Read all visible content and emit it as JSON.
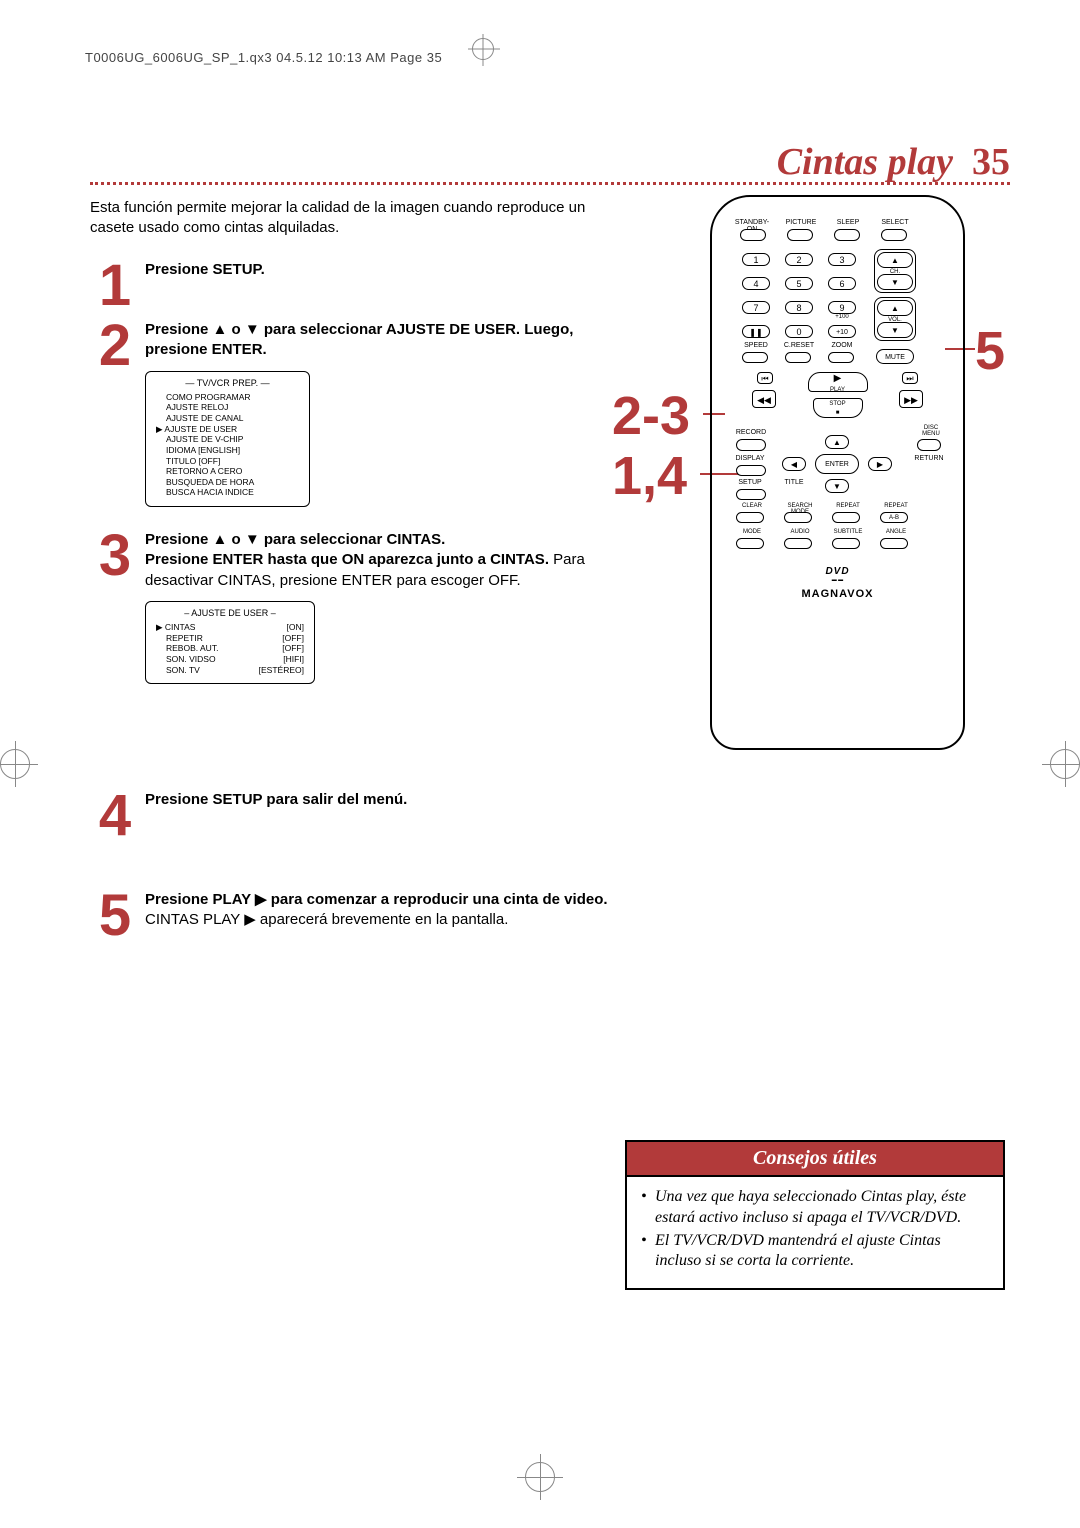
{
  "header_line": "T0006UG_6006UG_SP_1.qx3  04.5.12  10:13 AM  Page 35",
  "page_title_text": "Cintas play",
  "page_title_num": "35",
  "intro": "Esta función permite mejorar la calidad de la imagen cuando reproduce un casete usado como cintas alquiladas.",
  "steps": {
    "s1": {
      "num": "1",
      "text_bold": "Presione SETUP."
    },
    "s2": {
      "num": "2",
      "text_bold": "Presione ▲ o ▼ para seleccionar AJUSTE DE USER.  Luego, presione ENTER.",
      "menu": {
        "title": "— TV/VCR PREP. —",
        "lines": [
          "COMO PROGRAMAR",
          "AJUSTE RELOJ",
          "AJUSTE DE CANAL",
          "AJUSTE DE USER",
          "AJUSTE DE V-CHIP",
          "IDIOMA  [ENGLISH]",
          "TITULO  [OFF]",
          "RETORNO A CERO",
          "BUSQUEDA DE HORA",
          "BUSCA HACIA INDICE"
        ],
        "arrow_index": 3
      }
    },
    "s3": {
      "num": "3",
      "bold_a": "Presione ▲ o ▼ para seleccionar CINTAS.",
      "bold_b": "Presione ENTER hasta que ON aparezca junto a CINTAS.",
      "tail": "  Para desactivar CINTAS, presione ENTER para escoger OFF.",
      "menu": {
        "title": "– AJUSTE DE USER –",
        "rows": [
          {
            "l": "CINTAS",
            "r": "[ON]",
            "sel": true
          },
          {
            "l": "REPETIR",
            "r": "[OFF]"
          },
          {
            "l": "REBOB. AUT.",
            "r": "[OFF]"
          },
          {
            "l": "SON. VIDSO",
            "r": "[HIFI]"
          },
          {
            "l": "SON. TV",
            "r": "[ESTÉREO]"
          }
        ]
      }
    },
    "s4": {
      "num": "4",
      "text_bold": "Presione SETUP para salir del menú."
    },
    "s5": {
      "num": "5",
      "bold_a": "Presione PLAY ▶ para comenzar a reproducir una cinta de video.",
      "tail": " CINTAS PLAY ▶ aparecerá brevemente en la pantalla."
    }
  },
  "callouts": {
    "a": "2-3",
    "b": "1,4",
    "c": "5"
  },
  "remote": {
    "top_labels": [
      "STANDBY-ON",
      "PICTURE",
      "SLEEP",
      "SELECT"
    ],
    "row2_labels": [
      "SPEED",
      "C.RESET",
      "ZOOM"
    ],
    "mute": "MUTE",
    "ch": "CH.",
    "vol": "VOL.",
    "plus100": "+100",
    "plus10": "+10",
    "pause": "❚❚",
    "zero": "0",
    "play": "PLAY",
    "stop": "STOP",
    "record": "RECORD",
    "disc_menu": "DISC\nMENU",
    "display": "DISPLAY",
    "setup": "SETUP",
    "title": "TITLE",
    "return": "RETURN",
    "enter": "ENTER",
    "row_labels": [
      "CLEAR",
      "SEARCH MODE",
      "REPEAT",
      "REPEAT"
    ],
    "ab": "A-B",
    "row_labels2": [
      "MODE",
      "AUDIO",
      "SUBTITLE",
      "ANGLE"
    ],
    "brand": "MAGNAVOX",
    "dvd": "DVD"
  },
  "tips": {
    "header": "Consejos útiles",
    "items": [
      "Una vez que haya seleccionado Cintas play, éste estará activo incluso si apaga el TV/VCR/DVD.",
      "El TV/VCR/DVD mantendrá el ajuste Cintas incluso si se corta la corriente."
    ]
  },
  "colors": {
    "accent": "#b23a3a"
  }
}
